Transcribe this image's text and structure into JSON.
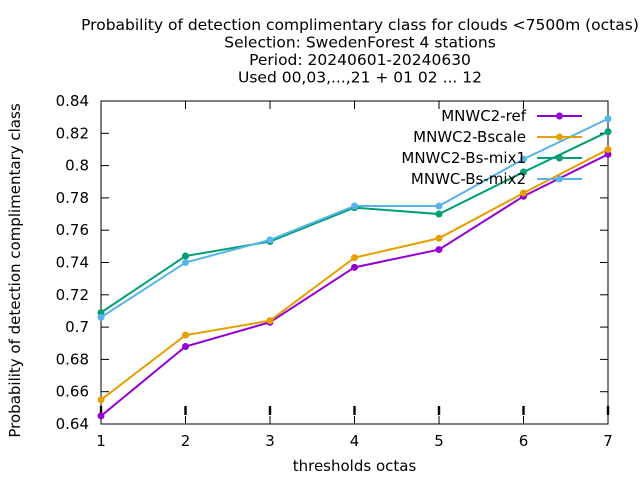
{
  "chart_data": {
    "type": "line",
    "title_lines": [
      "Probability of detection complimentary class  for clouds <7500m (octas)",
      "Selection: SwedenForest      4 stations",
      "Period: 20240601-20240630",
      "Used 00,03,...,21 + 01 02 ... 12"
    ],
    "xlabel": "thresholds octas",
    "ylabel": "Probability of detection complimentary class",
    "x": [
      1,
      2,
      3,
      4,
      5,
      6,
      7
    ],
    "xlim": [
      1,
      7
    ],
    "ylim": [
      0.64,
      0.84
    ],
    "x_ticks": [
      "1",
      "2",
      "3",
      "4",
      "5",
      "6",
      "7"
    ],
    "y_ticks": [
      "0.64",
      "0.66",
      "0.68",
      "0.7",
      "0.72",
      "0.74",
      "0.76",
      "0.78",
      "0.8",
      "0.82",
      "0.84"
    ],
    "grid": false,
    "legend_position": "top-right",
    "series": [
      {
        "name": "MNWC2-ref",
        "color": "#9400d3",
        "values": [
          0.645,
          0.688,
          0.703,
          0.737,
          0.748,
          0.781,
          0.807
        ]
      },
      {
        "name": "MNWC2-Bscale",
        "color": "#e69f00",
        "values": [
          0.655,
          0.695,
          0.704,
          0.743,
          0.755,
          0.783,
          0.81
        ]
      },
      {
        "name": "MNWC2-Bs-mix1",
        "color": "#009e73",
        "values": [
          0.709,
          0.744,
          0.753,
          0.774,
          0.77,
          0.796,
          0.821
        ]
      },
      {
        "name": "MNWC-Bs-mix2",
        "color": "#56b4e9",
        "values": [
          0.706,
          0.74,
          0.754,
          0.775,
          0.775,
          0.804,
          0.829
        ]
      }
    ]
  }
}
